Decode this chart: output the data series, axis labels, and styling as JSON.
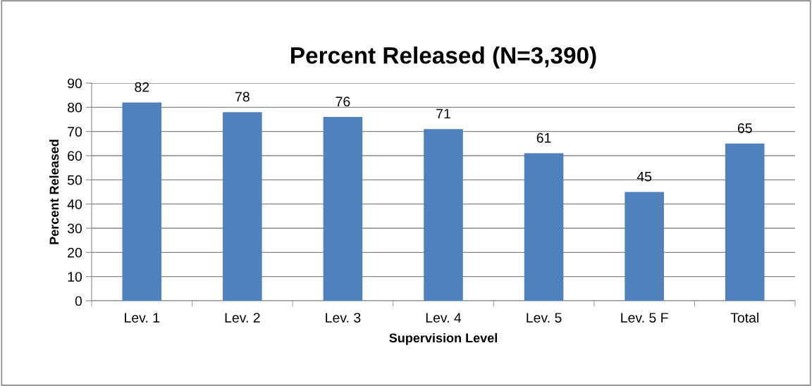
{
  "chart_data": {
    "type": "bar",
    "title": "Percent Released (N=3,390)",
    "xlabel": "Supervision Level",
    "ylabel": "Percent Released",
    "categories": [
      "Lev. 1",
      "Lev. 2",
      "Lev. 3",
      "Lev. 4",
      "Lev. 5",
      "Lev. 5 F",
      "Total"
    ],
    "values": [
      82,
      78,
      76,
      71,
      61,
      45,
      65
    ],
    "color": "#4f81bd",
    "ylim": [
      0,
      90
    ],
    "yticks": [
      0,
      10,
      20,
      30,
      40,
      50,
      60,
      70,
      80,
      90
    ],
    "grid": "y",
    "data_labels": true
  }
}
